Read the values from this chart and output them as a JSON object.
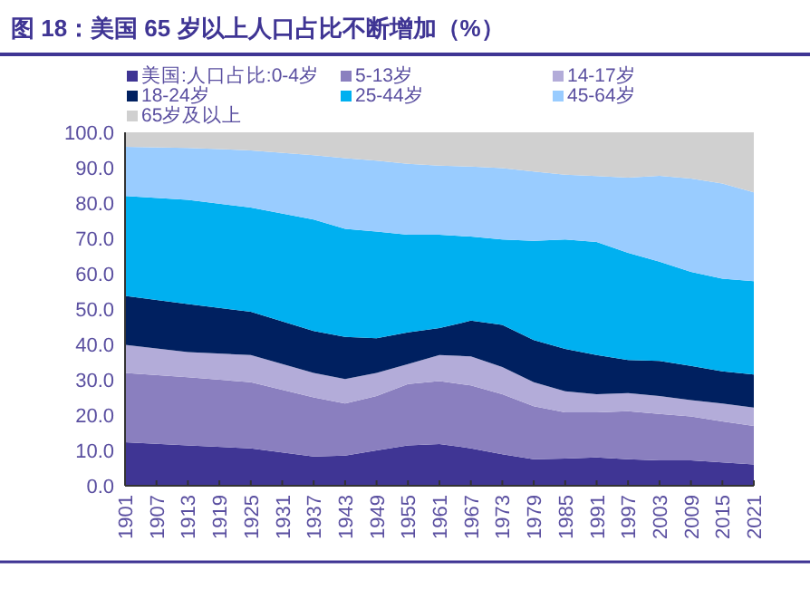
{
  "chart_data": {
    "type": "area",
    "stacked": true,
    "title": "图 18：美国 65 岁以上人口占比不断增加（%）",
    "x": [
      1901,
      1913,
      1925,
      1937,
      1943,
      1949,
      1955,
      1961,
      1967,
      1973,
      1979,
      1985,
      1991,
      1997,
      2003,
      2009,
      2015,
      2021
    ],
    "xlim": [
      1901,
      2021
    ],
    "xticks": [
      1901,
      1907,
      1913,
      1919,
      1925,
      1931,
      1937,
      1943,
      1949,
      1955,
      1961,
      1967,
      1973,
      1979,
      1985,
      1991,
      1997,
      2003,
      2009,
      2015,
      2021
    ],
    "ylim": [
      0,
      100
    ],
    "yticks": [
      {
        "value": 0,
        "label": "0.0"
      },
      {
        "value": 10,
        "label": "10.0"
      },
      {
        "value": 20,
        "label": "20.0"
      },
      {
        "value": 30,
        "label": "30.0"
      },
      {
        "value": 40,
        "label": "40.0"
      },
      {
        "value": 50,
        "label": "50.0"
      },
      {
        "value": 60,
        "label": "60.0"
      },
      {
        "value": 70,
        "label": "70.0"
      },
      {
        "value": 80,
        "label": "80.0"
      },
      {
        "value": 90,
        "label": "90.0"
      },
      {
        "value": 100,
        "label": "100.0"
      }
    ],
    "legend": "top",
    "grid": false,
    "series": [
      {
        "name": "美国:人口占比:0-4岁",
        "color": "#3f3594",
        "values": [
          12.3,
          11.4,
          10.6,
          8.3,
          8.5,
          10,
          11.4,
          11.8,
          10.6,
          8.9,
          7.5,
          7.7,
          8,
          7.5,
          7.2,
          7.2,
          6.6,
          6
        ]
      },
      {
        "name": "5-13岁",
        "color": "#8a7fbf",
        "values": [
          19.6,
          19.3,
          18.7,
          16.7,
          14.8,
          15.4,
          17.4,
          17.8,
          17.8,
          17,
          15,
          13.1,
          12.8,
          13.6,
          13.1,
          12.4,
          11.6,
          10.9
        ]
      },
      {
        "name": "14-17岁",
        "color": "#b3acd9",
        "values": [
          8,
          7.1,
          7.7,
          6.9,
          6.9,
          6.5,
          5.6,
          7.4,
          8.2,
          7.7,
          6.8,
          5.9,
          5.1,
          5.1,
          5.1,
          4.6,
          5.1,
          5.2
        ]
      },
      {
        "name": "18-24岁",
        "color": "#002060",
        "values": [
          13.8,
          13.6,
          12.2,
          11.9,
          11.9,
          9.8,
          9,
          7.6,
          10.1,
          11.9,
          11.9,
          12,
          11.1,
          9.4,
          9.9,
          9.7,
          9.1,
          9.4
        ]
      },
      {
        "name": "25-44岁",
        "color": "#00b0f0",
        "values": [
          28.3,
          29.5,
          29.5,
          31.5,
          30.6,
          30.2,
          27.6,
          26.4,
          23.8,
          24.2,
          28.1,
          31,
          32,
          30.3,
          28.1,
          26.6,
          26.2,
          26.4
        ]
      },
      {
        "name": "45-64岁",
        "color": "#99ccff",
        "values": [
          13.9,
          14.7,
          16.2,
          18.2,
          20,
          20.1,
          20.1,
          19.6,
          19.8,
          20.2,
          19.6,
          18.3,
          18.6,
          21.3,
          24.3,
          26.4,
          26.9,
          25.1
        ]
      },
      {
        "name": "65岁及以上",
        "color": "#d0d0d0",
        "values": [
          4.1,
          4.4,
          5.1,
          6.5,
          7.3,
          8,
          8.9,
          9.4,
          9.7,
          10.1,
          11.1,
          12,
          12.4,
          12.8,
          12.3,
          13.1,
          14.5,
          17
        ]
      }
    ]
  }
}
